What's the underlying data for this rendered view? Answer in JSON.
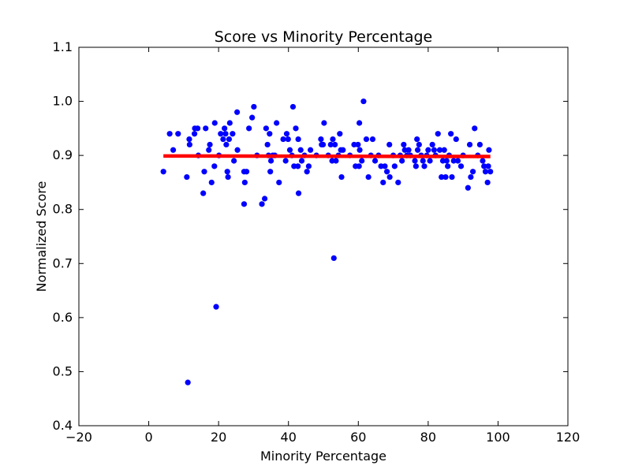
{
  "chart_data": {
    "type": "scatter",
    "title": "Score vs Minority Percentage",
    "xlabel": "Minority Percentage",
    "ylabel": "Normalized Score",
    "xlim": [
      -20,
      120
    ],
    "ylim": [
      0.4,
      1.1
    ],
    "xticks": [
      -20,
      0,
      20,
      40,
      60,
      80,
      100,
      120
    ],
    "yticks": [
      0.4,
      0.5,
      0.6,
      0.7,
      0.8,
      0.9,
      1.0,
      1.1
    ],
    "xtick_labels": [
      "−20",
      "0",
      "20",
      "40",
      "60",
      "80",
      "100",
      "120"
    ],
    "ytick_labels": [
      "0.4",
      "0.5",
      "0.6",
      "0.7",
      "0.8",
      "0.9",
      "1.0",
      "1.1"
    ],
    "grid": false,
    "scatter_color": "#0000ff",
    "line_color": "#ff0000",
    "points": [
      [
        4.2,
        0.87
      ],
      [
        6.0,
        0.94
      ],
      [
        7.0,
        0.91
      ],
      [
        8.4,
        0.94
      ],
      [
        10.9,
        0.86
      ],
      [
        11.6,
        0.93
      ],
      [
        11.7,
        0.92
      ],
      [
        11.2,
        0.48
      ],
      [
        13.1,
        0.94
      ],
      [
        13.2,
        0.95
      ],
      [
        14.0,
        0.95
      ],
      [
        14.2,
        0.9
      ],
      [
        15.6,
        0.83
      ],
      [
        15.9,
        0.87
      ],
      [
        16.3,
        0.95
      ],
      [
        17.2,
        0.91
      ],
      [
        17.5,
        0.92
      ],
      [
        18.0,
        0.85
      ],
      [
        18.8,
        0.88
      ],
      [
        18.9,
        0.96
      ],
      [
        19.3,
        0.62
      ],
      [
        20.1,
        0.9
      ],
      [
        20.6,
        0.94
      ],
      [
        21.3,
        0.93
      ],
      [
        21.7,
        0.95
      ],
      [
        22.0,
        0.94
      ],
      [
        22.2,
        0.92
      ],
      [
        22.5,
        0.87
      ],
      [
        22.7,
        0.86
      ],
      [
        23.0,
        0.93
      ],
      [
        23.2,
        0.96
      ],
      [
        24.0,
        0.94
      ],
      [
        24.4,
        0.89
      ],
      [
        25.3,
        0.98
      ],
      [
        25.4,
        0.91
      ],
      [
        27.3,
        0.81
      ],
      [
        27.3,
        0.87
      ],
      [
        27.5,
        0.85
      ],
      [
        28.0,
        0.87
      ],
      [
        28.7,
        0.95
      ],
      [
        29.6,
        0.97
      ],
      [
        30.1,
        0.99
      ],
      [
        31.0,
        0.9
      ],
      [
        32.4,
        0.81
      ],
      [
        33.2,
        0.82
      ],
      [
        33.6,
        0.95
      ],
      [
        34.0,
        0.92
      ],
      [
        34.3,
        0.9
      ],
      [
        34.6,
        0.94
      ],
      [
        34.8,
        0.87
      ],
      [
        35.0,
        0.89
      ],
      [
        35.5,
        0.9
      ],
      [
        36.1,
        0.9
      ],
      [
        36.6,
        0.96
      ],
      [
        37.3,
        0.85
      ],
      [
        38.5,
        0.93
      ],
      [
        39.2,
        0.89
      ],
      [
        39.5,
        0.94
      ],
      [
        39.9,
        0.93
      ],
      [
        40.4,
        0.91
      ],
      [
        41.0,
        0.9
      ],
      [
        41.3,
        0.99
      ],
      [
        41.6,
        0.88
      ],
      [
        42.1,
        0.95
      ],
      [
        42.7,
        0.88
      ],
      [
        42.8,
        0.93
      ],
      [
        42.9,
        0.83
      ],
      [
        43.5,
        0.91
      ],
      [
        43.8,
        0.89
      ],
      [
        44.6,
        0.9
      ],
      [
        45.3,
        0.87
      ],
      [
        45.8,
        0.88
      ],
      [
        46.3,
        0.91
      ],
      [
        48.0,
        0.9
      ],
      [
        49.3,
        0.93
      ],
      [
        49.5,
        0.92
      ],
      [
        49.9,
        0.92
      ],
      [
        50.2,
        0.96
      ],
      [
        51.4,
        0.9
      ],
      [
        52.1,
        0.92
      ],
      [
        52.5,
        0.89
      ],
      [
        52.7,
        0.93
      ],
      [
        53.0,
        0.71
      ],
      [
        53.3,
        0.92
      ],
      [
        53.6,
        0.89
      ],
      [
        54.3,
        0.9
      ],
      [
        54.7,
        0.94
      ],
      [
        55.0,
        0.91
      ],
      [
        55.2,
        0.86
      ],
      [
        55.6,
        0.91
      ],
      [
        57.6,
        0.9
      ],
      [
        58.8,
        0.92
      ],
      [
        59.2,
        0.88
      ],
      [
        59.9,
        0.92
      ],
      [
        60.2,
        0.88
      ],
      [
        60.3,
        0.96
      ],
      [
        60.4,
        0.91
      ],
      [
        61.0,
        0.89
      ],
      [
        61.5,
        1.0
      ],
      [
        62.3,
        0.93
      ],
      [
        62.9,
        0.86
      ],
      [
        63.6,
        0.9
      ],
      [
        64.1,
        0.93
      ],
      [
        64.8,
        0.89
      ],
      [
        65.8,
        0.9
      ],
      [
        66.5,
        0.88
      ],
      [
        67.1,
        0.85
      ],
      [
        67.6,
        0.88
      ],
      [
        68.2,
        0.87
      ],
      [
        68.9,
        0.92
      ],
      [
        69.0,
        0.86
      ],
      [
        70.0,
        0.9
      ],
      [
        70.4,
        0.88
      ],
      [
        71.4,
        0.85
      ],
      [
        72.0,
        0.9
      ],
      [
        72.5,
        0.89
      ],
      [
        73.0,
        0.92
      ],
      [
        73.3,
        0.91
      ],
      [
        73.9,
        0.9
      ],
      [
        74.4,
        0.91
      ],
      [
        74.9,
        0.9
      ],
      [
        76.2,
        0.89
      ],
      [
        76.5,
        0.88
      ],
      [
        76.8,
        0.93
      ],
      [
        77.0,
        0.91
      ],
      [
        77.4,
        0.92
      ],
      [
        78.0,
        0.9
      ],
      [
        78.5,
        0.89
      ],
      [
        78.9,
        0.88
      ],
      [
        79.6,
        0.9
      ],
      [
        80.0,
        0.91
      ],
      [
        80.5,
        0.89
      ],
      [
        81.2,
        0.92
      ],
      [
        81.7,
        0.91
      ],
      [
        82.1,
        0.9
      ],
      [
        82.8,
        0.94
      ],
      [
        83.3,
        0.91
      ],
      [
        83.8,
        0.86
      ],
      [
        84.2,
        0.89
      ],
      [
        84.6,
        0.91
      ],
      [
        85.0,
        0.86
      ],
      [
        85.3,
        0.89
      ],
      [
        85.6,
        0.88
      ],
      [
        86.0,
        0.9
      ],
      [
        86.5,
        0.94
      ],
      [
        86.8,
        0.86
      ],
      [
        87.3,
        0.89
      ],
      [
        88.0,
        0.93
      ],
      [
        88.5,
        0.89
      ],
      [
        89.4,
        0.88
      ],
      [
        90.0,
        0.9
      ],
      [
        91.4,
        0.84
      ],
      [
        91.9,
        0.92
      ],
      [
        92.2,
        0.86
      ],
      [
        92.8,
        0.87
      ],
      [
        93.3,
        0.95
      ],
      [
        94.2,
        0.9
      ],
      [
        94.8,
        0.92
      ],
      [
        95.6,
        0.89
      ],
      [
        96.0,
        0.88
      ],
      [
        96.4,
        0.87
      ],
      [
        97.0,
        0.85
      ],
      [
        97.2,
        0.88
      ],
      [
        97.4,
        0.91
      ],
      [
        97.8,
        0.87
      ]
    ],
    "fit_line": [
      [
        4.2,
        0.899
      ],
      [
        97.8,
        0.898
      ]
    ]
  }
}
